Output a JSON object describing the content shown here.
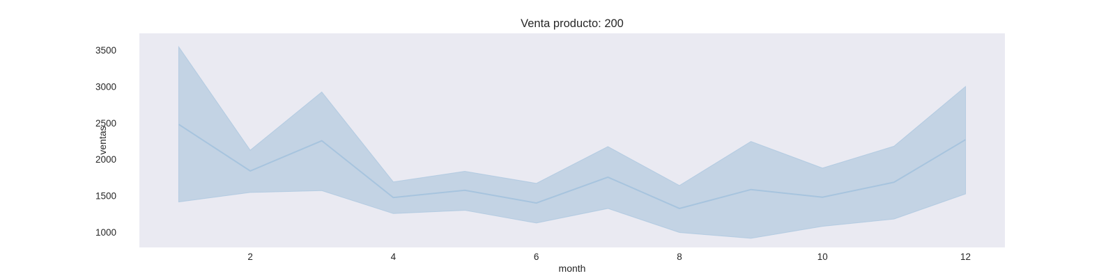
{
  "chart_data": {
    "type": "line",
    "title": "Venta producto: 200",
    "xlabel": "month",
    "ylabel": "ventas",
    "x": [
      1,
      2,
      3,
      4,
      5,
      6,
      7,
      8,
      9,
      10,
      11,
      12
    ],
    "series": [
      {
        "values": [
          2480,
          1840,
          2255,
          1475,
          1575,
          1400,
          1755,
          1325,
          1585,
          1480,
          1685,
          2270
        ],
        "band_upper": [
          3545,
          2125,
          2925,
          1690,
          1835,
          1670,
          2175,
          1640,
          2245,
          1880,
          2180,
          3000
        ],
        "band_lower": [
          1415,
          1545,
          1570,
          1255,
          1300,
          1125,
          1325,
          995,
          915,
          1080,
          1180,
          1525
        ]
      }
    ],
    "xlim": [
      0.45,
      12.55
    ],
    "ylim": [
      790,
      3730
    ],
    "xticks": [
      2,
      4,
      6,
      8,
      10,
      12
    ],
    "yticks": [
      1000,
      1500,
      2000,
      2500,
      3000,
      3500
    ],
    "grid": false,
    "colors": {
      "plot_background": "#EAEAF2",
      "line": "#A7C4DE",
      "band": "#C3D3E4",
      "text": "#262626"
    }
  }
}
